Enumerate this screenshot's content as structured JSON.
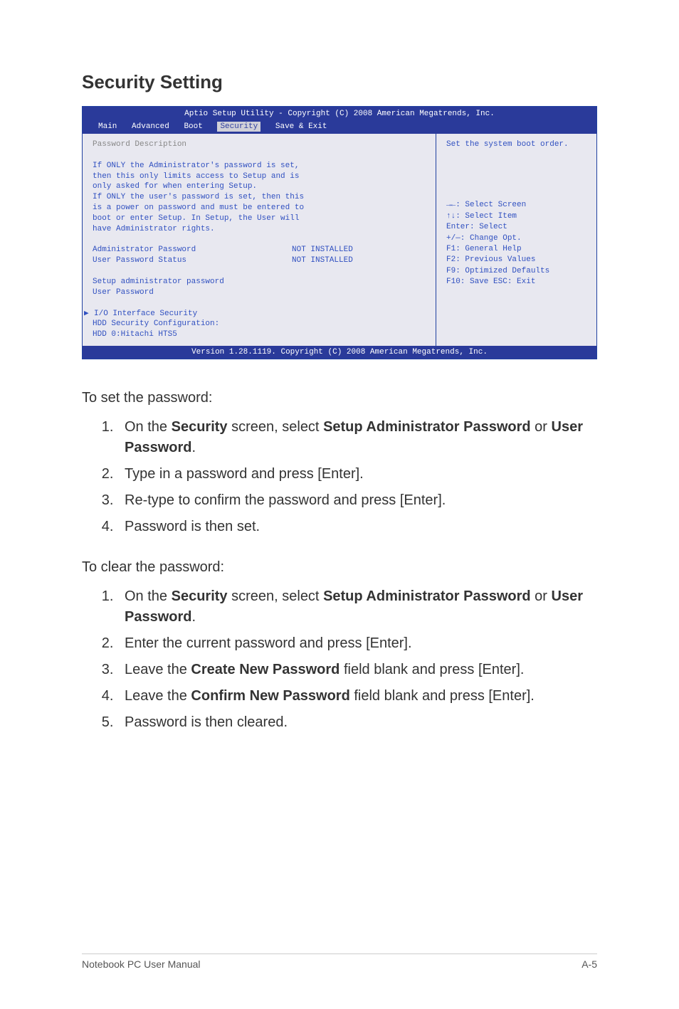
{
  "heading": "Security Setting",
  "bios": {
    "topbar": "Aptio Setup Utility - Copyright (C) 2008 American Megatrends, Inc.",
    "menu": {
      "main": "Main",
      "advanced": "Advanced",
      "boot": "Boot",
      "security": "Security",
      "save": "Save & Exit"
    },
    "left": {
      "pwd_desc": "Password Description",
      "desc1": "If ONLY the Administrator's password is set,",
      "desc2": "then this only limits access to Setup and is",
      "desc3": "only asked for when entering Setup.",
      "desc4": "If ONLY the user's password is set, then this",
      "desc5": "is a power on password and must be entered to",
      "desc6": "boot or enter Setup. In Setup, the User will",
      "desc7": "have Administrator rights.",
      "admin_pw": "Administrator Password",
      "admin_pw_val": "NOT INSTALLED",
      "user_pw_st": "User Password Status",
      "user_pw_st_val": "NOT INSTALLED",
      "setup_admin": "Setup administrator password",
      "user_pw": "User Password",
      "io_sec": "I/O Interface Security",
      "hdd_conf": "HDD Security Configuration:",
      "hdd0": "HDD 0:Hitachi HTS5"
    },
    "right": {
      "top": "Set the system boot order.",
      "k1": "→←: Select Screen",
      "k2": "↑↓:   Select Item",
      "k3": "Enter: Select",
      "k4": "+/—:  Change Opt.",
      "k5": "F1:    General Help",
      "k6": "F2:    Previous Values",
      "k7": "F9:    Optimized Defaults",
      "k8": "F10:  Save    ESC:  Exit"
    },
    "footer": "Version 1.28.1119. Copyright (C) 2008 American Megatrends, Inc."
  },
  "set_intro": "To set the password:",
  "set_steps": {
    "s1a": "On the ",
    "s1b": "Security",
    "s1c": " screen, select ",
    "s1d": "Setup Administrator Password",
    "s1e": " or ",
    "s1f": "User Password",
    "s1g": ".",
    "s2": "Type in a password and press [Enter].",
    "s3": "Re-type to confirm the password and press [Enter].",
    "s4": "Password is then set."
  },
  "clear_intro": "To clear the password:",
  "clear_steps": {
    "s1a": "On the ",
    "s1b": "Security",
    "s1c": " screen, select ",
    "s1d": "Setup Administrator Password",
    "s1e": " or ",
    "s1f": "User Password",
    "s1g": ".",
    "s2": "Enter the current password and press [Enter].",
    "s3a": "Leave the ",
    "s3b": "Create New Password",
    "s3c": " field blank and press [Enter].",
    "s4a": "Leave the ",
    "s4b": "Confirm New Password",
    "s4c": " field blank and press [Enter].",
    "s5": "Password is then cleared."
  },
  "footer_left": "Notebook PC User Manual",
  "footer_right": "A-5",
  "style": {
    "bios_bg": "#2a3a9a",
    "bios_body_bg": "#e8e8f0",
    "bios_text": "#3050c0",
    "bios_gray": "#888888",
    "body_font_size": 20,
    "heading_font_size": 26
  }
}
